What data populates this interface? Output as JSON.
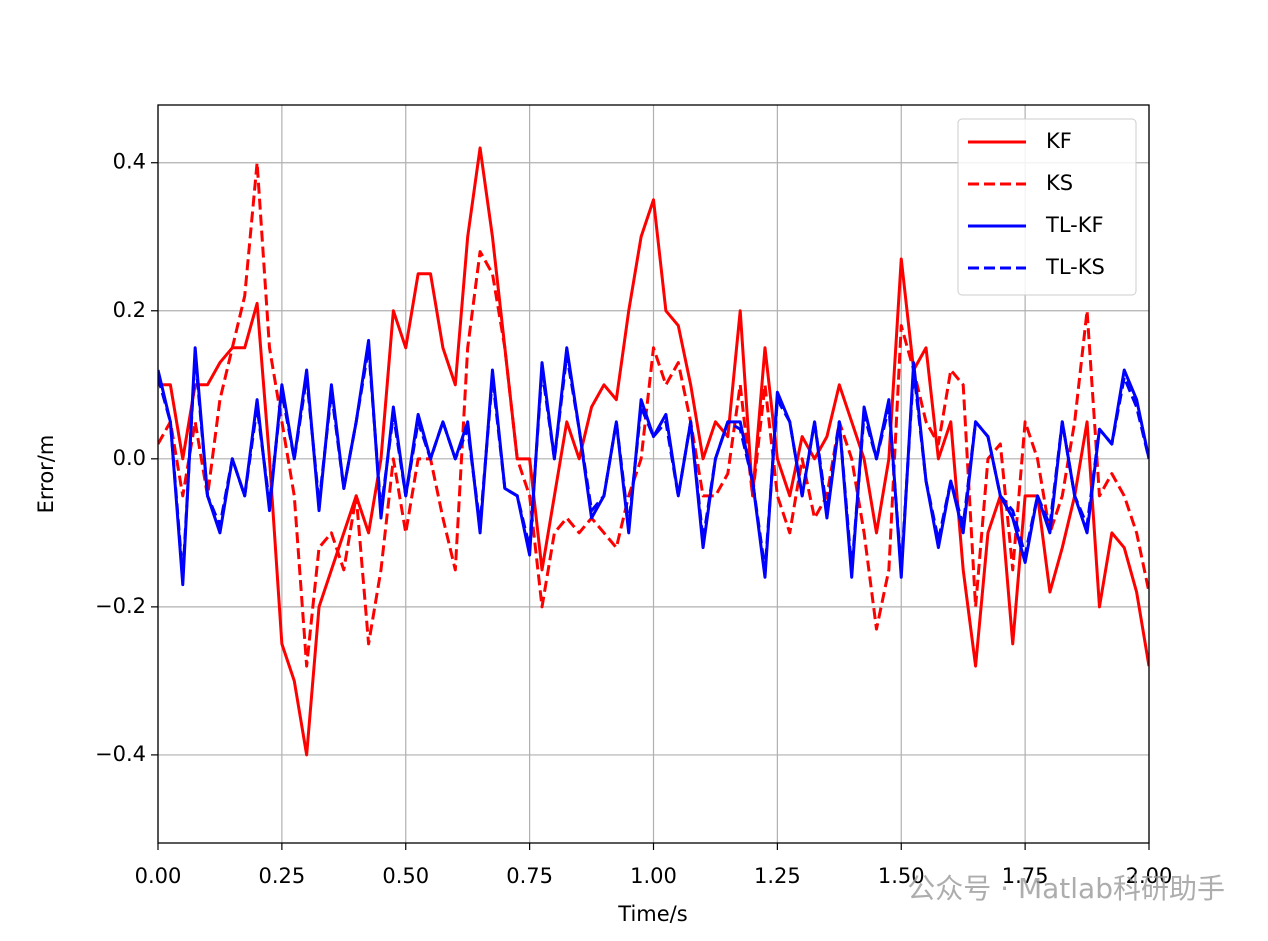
{
  "chart_data": {
    "type": "line",
    "xlabel": "Time/s",
    "ylabel": "Error/m",
    "watermark": "公众号 · Matlab科研助手",
    "x": [
      0,
      0.025,
      0.05,
      0.075,
      0.1,
      0.125,
      0.15,
      0.175,
      0.2,
      0.225,
      0.25,
      0.275,
      0.3,
      0.325,
      0.35,
      0.375,
      0.4,
      0.425,
      0.45,
      0.475,
      0.5,
      0.525,
      0.55,
      0.575,
      0.6,
      0.625,
      0.65,
      0.675,
      0.7,
      0.725,
      0.75,
      0.775,
      0.8,
      0.825,
      0.85,
      0.875,
      0.9,
      0.925,
      0.95,
      0.975,
      1.0,
      1.025,
      1.05,
      1.075,
      1.1,
      1.125,
      1.15,
      1.175,
      1.2,
      1.225,
      1.25,
      1.275,
      1.3,
      1.325,
      1.35,
      1.375,
      1.4,
      1.425,
      1.45,
      1.475,
      1.5,
      1.525,
      1.55,
      1.575,
      1.6,
      1.625,
      1.65,
      1.675,
      1.7,
      1.725,
      1.75,
      1.775,
      1.8,
      1.825,
      1.85,
      1.875,
      1.9,
      1.925,
      1.95,
      1.975,
      2.0
    ],
    "series": [
      {
        "name": "KF",
        "color": "#ff0000",
        "dash": false,
        "values": [
          0.1,
          0.1,
          0.0,
          0.1,
          0.1,
          0.13,
          0.15,
          0.15,
          0.21,
          0.0,
          -0.25,
          -0.3,
          -0.4,
          -0.2,
          -0.15,
          -0.1,
          -0.05,
          -0.1,
          0.0,
          0.2,
          0.15,
          0.25,
          0.25,
          0.15,
          0.1,
          0.3,
          0.42,
          0.3,
          0.15,
          0.0,
          0.0,
          -0.15,
          -0.05,
          0.05,
          0.0,
          0.07,
          0.1,
          0.08,
          0.2,
          0.3,
          0.35,
          0.2,
          0.18,
          0.1,
          0.0,
          0.05,
          0.03,
          0.2,
          -0.05,
          0.15,
          0.0,
          -0.05,
          0.03,
          0.0,
          0.03,
          0.1,
          0.05,
          0.0,
          -0.1,
          0.0,
          0.27,
          0.12,
          0.15,
          0.0,
          0.05,
          -0.15,
          -0.28,
          -0.1,
          -0.05,
          -0.25,
          -0.05,
          -0.05,
          -0.18,
          -0.12,
          -0.05,
          0.05,
          -0.2,
          -0.1,
          -0.12,
          -0.18,
          -0.28
        ]
      },
      {
        "name": "KS",
        "color": "#ff0000",
        "dash": true,
        "values": [
          0.02,
          0.05,
          -0.05,
          0.05,
          -0.05,
          0.08,
          0.15,
          0.22,
          0.4,
          0.15,
          0.05,
          -0.05,
          -0.28,
          -0.12,
          -0.1,
          -0.15,
          -0.05,
          -0.25,
          -0.15,
          0.0,
          -0.1,
          0.0,
          0.0,
          -0.08,
          -0.15,
          0.15,
          0.28,
          0.25,
          0.15,
          0.0,
          -0.05,
          -0.2,
          -0.1,
          -0.08,
          -0.1,
          -0.08,
          -0.1,
          -0.12,
          -0.05,
          0.0,
          0.15,
          0.1,
          0.13,
          0.05,
          -0.05,
          -0.05,
          -0.02,
          0.1,
          -0.05,
          0.1,
          -0.05,
          -0.1,
          0.0,
          -0.08,
          -0.05,
          0.05,
          0.0,
          -0.1,
          -0.23,
          -0.15,
          0.18,
          0.12,
          0.05,
          0.02,
          0.12,
          0.1,
          -0.2,
          0.0,
          0.02,
          -0.15,
          0.05,
          0.0,
          -0.1,
          -0.05,
          0.05,
          0.2,
          -0.05,
          -0.02,
          -0.05,
          -0.1,
          -0.18
        ]
      },
      {
        "name": "TL-KF",
        "color": "#0000ff",
        "dash": false,
        "values": [
          0.12,
          0.05,
          -0.17,
          0.15,
          -0.05,
          -0.1,
          0.0,
          -0.05,
          0.08,
          -0.07,
          0.1,
          0.0,
          0.12,
          -0.07,
          0.1,
          -0.04,
          0.05,
          0.16,
          -0.08,
          0.07,
          -0.05,
          0.06,
          0.0,
          0.05,
          0.0,
          0.05,
          -0.1,
          0.12,
          -0.04,
          -0.05,
          -0.13,
          0.13,
          0.0,
          0.15,
          0.04,
          -0.08,
          -0.05,
          0.05,
          -0.1,
          0.08,
          0.03,
          0.06,
          -0.05,
          0.05,
          -0.12,
          0.0,
          0.05,
          0.05,
          -0.03,
          -0.16,
          0.09,
          0.05,
          -0.05,
          0.05,
          -0.08,
          0.05,
          -0.16,
          0.07,
          0.0,
          0.08,
          -0.16,
          0.13,
          -0.03,
          -0.12,
          -0.03,
          -0.1,
          0.05,
          0.03,
          -0.05,
          -0.08,
          -0.14,
          -0.05,
          -0.1,
          0.05,
          -0.05,
          -0.1,
          0.04,
          0.02,
          0.12,
          0.08,
          0.0
        ]
      },
      {
        "name": "TL-KS",
        "color": "#0000ff",
        "dash": true,
        "values": [
          0.11,
          0.05,
          -0.16,
          0.14,
          -0.05,
          -0.09,
          0.0,
          -0.05,
          0.07,
          -0.06,
          0.09,
          0.0,
          0.11,
          -0.06,
          0.09,
          -0.04,
          0.05,
          0.15,
          -0.07,
          0.06,
          -0.05,
          0.05,
          0.0,
          0.05,
          0.0,
          0.04,
          -0.09,
          0.11,
          -0.04,
          -0.05,
          -0.12,
          0.12,
          0.0,
          0.14,
          0.04,
          -0.07,
          -0.05,
          0.05,
          -0.09,
          0.07,
          0.03,
          0.05,
          -0.05,
          0.05,
          -0.11,
          0.0,
          0.05,
          0.04,
          -0.03,
          -0.15,
          0.08,
          0.05,
          -0.05,
          0.05,
          -0.07,
          0.05,
          -0.15,
          0.06,
          0.0,
          0.07,
          -0.15,
          0.12,
          -0.03,
          -0.11,
          -0.03,
          -0.09,
          0.05,
          0.03,
          -0.05,
          -0.07,
          -0.13,
          -0.05,
          -0.09,
          0.05,
          -0.05,
          -0.09,
          0.04,
          0.02,
          0.11,
          0.07,
          0.0
        ]
      }
    ],
    "xlim": [
      0,
      2.0
    ],
    "ylim": [
      -0.519,
      0.478
    ],
    "xticks": [
      {
        "value": 0,
        "label": "0.00"
      },
      {
        "value": 0.25,
        "label": "0.25"
      },
      {
        "value": 0.5,
        "label": "0.50"
      },
      {
        "value": 0.75,
        "label": "0.75"
      },
      {
        "value": 1.0,
        "label": "1.00"
      },
      {
        "value": 1.25,
        "label": "1.25"
      },
      {
        "value": 1.5,
        "label": "1.50"
      },
      {
        "value": 1.75,
        "label": "1.75"
      },
      {
        "value": 2.0,
        "label": "2.00"
      }
    ],
    "yticks": [
      {
        "value": -0.4,
        "label": "−0.4"
      },
      {
        "value": -0.2,
        "label": "−0.2"
      },
      {
        "value": 0,
        "label": "0.0"
      },
      0.2,
      0.4
    ],
    "grid": true,
    "legend": "upper right"
  }
}
